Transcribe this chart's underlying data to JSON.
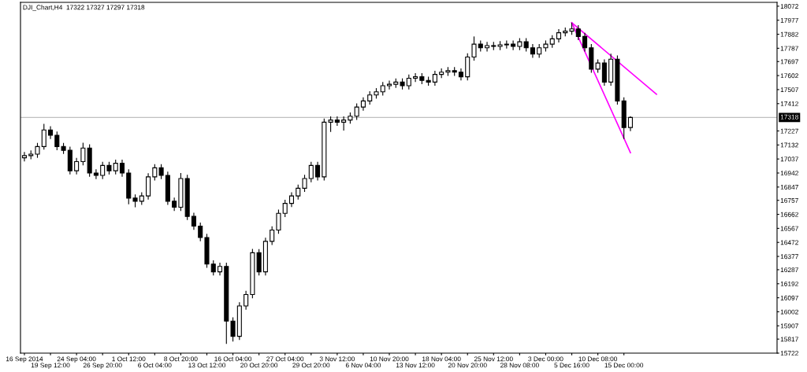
{
  "chart_data": {
    "type": "candlestick",
    "title": "DJI_Chart,H4  17322 17327 17297 17318",
    "categories": [
      "16 Sep 2014",
      null,
      null,
      null,
      "19 Sep 12:00",
      null,
      null,
      null,
      "24 Sep 04:00",
      null,
      null,
      null,
      "26 Sep 20:00",
      null,
      null,
      null,
      "1 Oct 12:00",
      null,
      null,
      null,
      "6 Oct 04:00",
      null,
      null,
      null,
      "8 Oct 20:00",
      null,
      null,
      null,
      "13 Oct 12:00",
      null,
      null,
      null,
      "16 Oct 04:00",
      null,
      null,
      null,
      "20 Oct 20:00",
      null,
      null,
      null,
      "27 Oct 04:00",
      null,
      null,
      null,
      "29 Oct 20:00",
      null,
      null,
      null,
      "3 Nov 12:00",
      null,
      null,
      null,
      "6 Nov 04:00",
      null,
      null,
      null,
      "10 Nov 20:00",
      null,
      null,
      null,
      "13 Nov 12:00",
      null,
      null,
      null,
      "18 Nov 04:00",
      null,
      null,
      null,
      "20 Nov 20:00",
      null,
      null,
      null,
      "25 Nov 12:00",
      null,
      null,
      null,
      "28 Nov 08:00",
      null,
      null,
      null,
      "3 Dec 00:00",
      null,
      null,
      null,
      "5 Dec 16:00",
      null,
      null,
      null,
      "10 Dec 08:00",
      null,
      null,
      null,
      "15 Dec 00:00",
      null,
      null,
      null,
      null,
      null,
      null,
      null,
      null,
      null,
      null,
      null,
      null,
      null,
      null,
      null,
      null,
      null,
      null,
      null,
      null,
      null,
      null,
      null
    ],
    "ohlc": [
      [
        17045,
        17085,
        17020,
        17060
      ],
      [
        17060,
        17095,
        17035,
        17070
      ],
      [
        17070,
        17146,
        17045,
        17121
      ],
      [
        17121,
        17275,
        17100,
        17234
      ],
      [
        17234,
        17259,
        17173,
        17198
      ],
      [
        17198,
        17223,
        17096,
        17121
      ],
      [
        17121,
        17146,
        17071,
        17096
      ],
      [
        17096,
        17121,
        16932,
        16957
      ],
      [
        16957,
        17044,
        16932,
        17019
      ],
      [
        17019,
        17147,
        16994,
        17111
      ],
      [
        17111,
        17136,
        16917,
        16942
      ],
      [
        16942,
        16967,
        16901,
        16926
      ],
      [
        16926,
        17018,
        16901,
        16993
      ],
      [
        16993,
        17018,
        16932,
        16957
      ],
      [
        16957,
        17033,
        16932,
        17008
      ],
      [
        17008,
        17033,
        16917,
        16942
      ],
      [
        16942,
        16967,
        16730,
        16772
      ],
      [
        16772,
        16797,
        16710,
        16751
      ],
      [
        16751,
        16812,
        16726,
        16787
      ],
      [
        16787,
        16941,
        16762,
        16916
      ],
      [
        16916,
        17002,
        16891,
        16977
      ],
      [
        16977,
        17002,
        16901,
        16926
      ],
      [
        16926,
        16951,
        16726,
        16751
      ],
      [
        16751,
        16776,
        16685,
        16710
      ],
      [
        16710,
        16942,
        16685,
        16905
      ],
      [
        16905,
        16930,
        16623,
        16648
      ],
      [
        16648,
        16673,
        16557,
        16582
      ],
      [
        16582,
        16607,
        16480,
        16505
      ],
      [
        16505,
        16530,
        16300,
        16325
      ],
      [
        16325,
        16350,
        16248,
        16273
      ],
      [
        16273,
        16334,
        16248,
        16309
      ],
      [
        16309,
        16334,
        15785,
        15939
      ],
      [
        15939,
        15964,
        15800,
        15836
      ],
      [
        15836,
        16067,
        15811,
        16042
      ],
      [
        16042,
        16144,
        16017,
        16119
      ],
      [
        16119,
        16428,
        16094,
        16402
      ],
      [
        16402,
        16427,
        16248,
        16273
      ],
      [
        16273,
        16504,
        16248,
        16479
      ],
      [
        16479,
        16581,
        16454,
        16556
      ],
      [
        16556,
        16694,
        16531,
        16669
      ],
      [
        16669,
        16761,
        16644,
        16736
      ],
      [
        16736,
        16812,
        16711,
        16787
      ],
      [
        16787,
        16864,
        16762,
        16839
      ],
      [
        16839,
        16930,
        16814,
        16905
      ],
      [
        16905,
        17018,
        16880,
        16993
      ],
      [
        16993,
        17018,
        16891,
        16916
      ],
      [
        16916,
        17311,
        16891,
        17286
      ],
      [
        17286,
        17326,
        17220,
        17301
      ],
      [
        17301,
        17326,
        17261,
        17286
      ],
      [
        17286,
        17326,
        17230,
        17301
      ],
      [
        17301,
        17352,
        17276,
        17327
      ],
      [
        17327,
        17414,
        17302,
        17389
      ],
      [
        17389,
        17455,
        17364,
        17430
      ],
      [
        17430,
        17496,
        17405,
        17471
      ],
      [
        17471,
        17517,
        17446,
        17492
      ],
      [
        17492,
        17558,
        17467,
        17533
      ],
      [
        17533,
        17568,
        17508,
        17543
      ],
      [
        17543,
        17583,
        17518,
        17558
      ],
      [
        17558,
        17583,
        17508,
        17533
      ],
      [
        17533,
        17609,
        17508,
        17584
      ],
      [
        17584,
        17619,
        17559,
        17594
      ],
      [
        17594,
        17619,
        17544,
        17569
      ],
      [
        17569,
        17594,
        17533,
        17558
      ],
      [
        17558,
        17635,
        17533,
        17610
      ],
      [
        17610,
        17650,
        17585,
        17625
      ],
      [
        17625,
        17660,
        17600,
        17635
      ],
      [
        17635,
        17660,
        17600,
        17625
      ],
      [
        17625,
        17650,
        17569,
        17594
      ],
      [
        17594,
        17753,
        17569,
        17728
      ],
      [
        17728,
        17867,
        17703,
        17815
      ],
      [
        17815,
        17840,
        17765,
        17790
      ],
      [
        17790,
        17830,
        17765,
        17805
      ],
      [
        17805,
        17830,
        17775,
        17800
      ],
      [
        17800,
        17835,
        17775,
        17810
      ],
      [
        17810,
        17840,
        17785,
        17815
      ],
      [
        17815,
        17840,
        17775,
        17800
      ],
      [
        17800,
        17856,
        17775,
        17831
      ],
      [
        17831,
        17856,
        17765,
        17790
      ],
      [
        17790,
        17815,
        17723,
        17748
      ],
      [
        17748,
        17815,
        17723,
        17790
      ],
      [
        17790,
        17840,
        17765,
        17815
      ],
      [
        17815,
        17876,
        17790,
        17851
      ],
      [
        17851,
        17917,
        17826,
        17892
      ],
      [
        17892,
        17928,
        17867,
        17903
      ],
      [
        17903,
        17960,
        17878,
        17918
      ],
      [
        17918,
        17943,
        17842,
        17867
      ],
      [
        17867,
        17892,
        17765,
        17790
      ],
      [
        17790,
        17815,
        17621,
        17646
      ],
      [
        17646,
        17712,
        17621,
        17687
      ],
      [
        17687,
        17712,
        17533,
        17558
      ],
      [
        17558,
        17750,
        17533,
        17713
      ],
      [
        17713,
        17738,
        17405,
        17430
      ],
      [
        17430,
        17455,
        17172,
        17250
      ],
      [
        17250,
        17327,
        17225,
        17318
      ],
      null,
      null,
      null,
      null,
      null,
      null,
      null,
      null,
      null,
      null,
      null,
      null,
      null,
      null,
      null,
      null,
      null,
      null,
      null,
      null,
      null,
      null
    ],
    "color": "#000000",
    "series": [
      {
        "type": "line",
        "color": "#ff00ff",
        "values": [
          null,
          null,
          null,
          null,
          null,
          null,
          null,
          null,
          null,
          null,
          null,
          null,
          null,
          null,
          null,
          null,
          null,
          null,
          null,
          null,
          null,
          null,
          null,
          null,
          null,
          null,
          null,
          null,
          null,
          null,
          null,
          null,
          null,
          null,
          null,
          null,
          null,
          null,
          null,
          null,
          null,
          null,
          null,
          null,
          null,
          null,
          null,
          null,
          null,
          null,
          null,
          null,
          null,
          null,
          null,
          null,
          null,
          null,
          null,
          null,
          null,
          null,
          null,
          null,
          null,
          null,
          null,
          null,
          null,
          null,
          null,
          null,
          null,
          null,
          null,
          null,
          null,
          null,
          null,
          null,
          null,
          null,
          null,
          null,
          17960,
          null,
          null,
          null,
          null,
          null,
          null,
          null,
          null,
          null,
          null,
          null,
          null,
          17476,
          null,
          null,
          null,
          null,
          null,
          null,
          null,
          null,
          null,
          null,
          null,
          null,
          null,
          null,
          null,
          null,
          null,
          null
        ]
      },
      {
        "type": "line",
        "color": "#ff00ff",
        "values": [
          null,
          null,
          null,
          null,
          null,
          null,
          null,
          null,
          null,
          null,
          null,
          null,
          null,
          null,
          null,
          null,
          null,
          null,
          null,
          null,
          null,
          null,
          null,
          null,
          null,
          null,
          null,
          null,
          null,
          null,
          null,
          null,
          null,
          null,
          null,
          null,
          null,
          null,
          null,
          null,
          null,
          null,
          null,
          null,
          null,
          null,
          null,
          null,
          null,
          null,
          null,
          null,
          null,
          null,
          null,
          null,
          null,
          null,
          null,
          null,
          null,
          null,
          null,
          null,
          null,
          null,
          null,
          null,
          null,
          null,
          null,
          null,
          null,
          null,
          null,
          null,
          null,
          null,
          null,
          null,
          null,
          null,
          null,
          null,
          17960,
          null,
          null,
          null,
          null,
          null,
          null,
          null,
          null,
          17080,
          null,
          null,
          null,
          null,
          null,
          null,
          null,
          null,
          null,
          null,
          null,
          null,
          null,
          null,
          null,
          null,
          null,
          null,
          null,
          null,
          null,
          null
        ]
      }
    ],
    "ylim": [
      15722,
      18098
    ],
    "yticks": [
      18072,
      17977,
      17882,
      17787,
      17697,
      17602,
      17507,
      17412,
      17227,
      17132,
      17037,
      16942,
      16847,
      16757,
      16662,
      16567,
      16472,
      16377,
      16287,
      16192,
      16097,
      16002,
      15907,
      15817,
      15722
    ],
    "ref_lines": [
      {
        "axis": "y",
        "value": 17318,
        "label": "17318",
        "color": "#c0c0c0"
      }
    ],
    "grid": false
  }
}
